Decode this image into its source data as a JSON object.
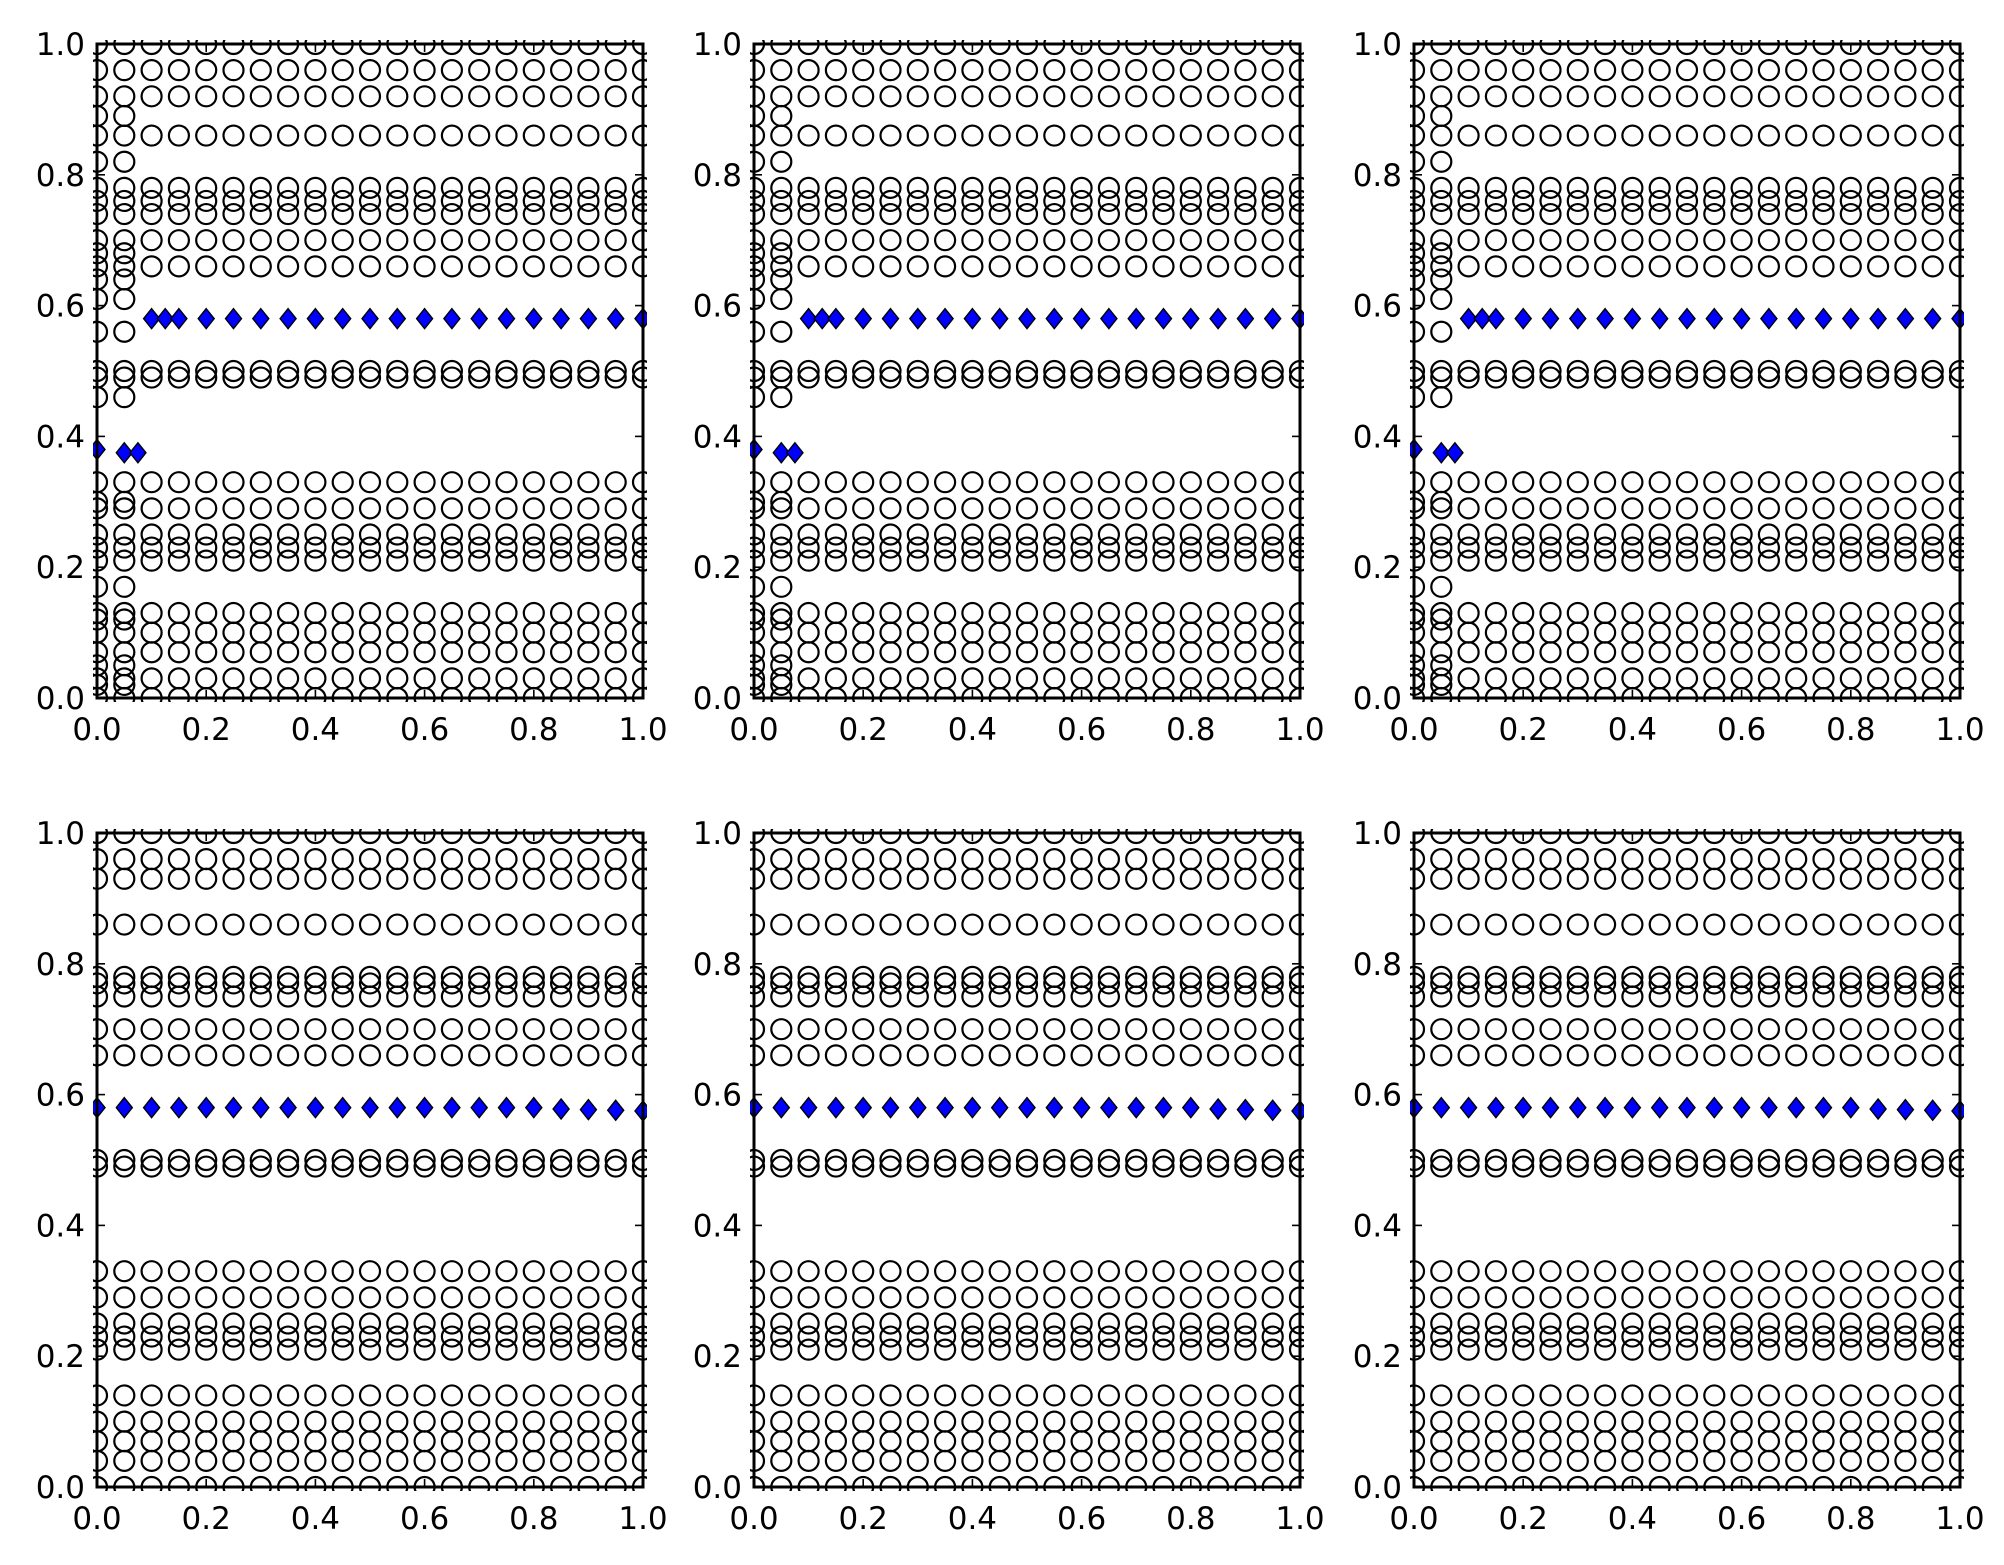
{
  "figure": {
    "layout": "2x3 grid of scatter plots",
    "background_color": "#ffffff"
  },
  "chart_data": [
    {
      "panel": "top-left",
      "type": "scatter",
      "title": "",
      "xlabel": "",
      "ylabel": "",
      "xlim": [
        0,
        1
      ],
      "ylim": [
        0,
        1
      ],
      "grid": false,
      "legend": "none",
      "xticks": [
        "0.0",
        "0.2",
        "0.4",
        "0.6",
        "0.8",
        "1.0"
      ],
      "yticks": [
        "0.0",
        "0.2",
        "0.4",
        "0.6",
        "0.8",
        "1.0"
      ],
      "series": [
        {
          "marker": "circle",
          "color": "none",
          "edge_color": "#000000",
          "x_columns": [
            0.0,
            0.05,
            0.1,
            0.15,
            0.2,
            0.25,
            0.3,
            0.35,
            0.4,
            0.45,
            0.5,
            0.55,
            0.6,
            0.65,
            0.7,
            0.75,
            0.8,
            0.85,
            0.9,
            0.95,
            1.0
          ],
          "y_rows": [
            0.0,
            0.03,
            0.07,
            0.1,
            0.13,
            0.21,
            0.23,
            0.25,
            0.29,
            0.33,
            0.49,
            0.5,
            0.66,
            0.7,
            0.74,
            0.76,
            0.78,
            0.86,
            0.92,
            0.96,
            1.0
          ],
          "y_rows_left_margin": [
            0.02,
            0.05,
            0.12,
            0.17,
            0.3,
            0.46,
            0.56,
            0.61,
            0.64,
            0.68,
            0.82,
            0.89
          ]
        },
        {
          "marker": "diamond",
          "color": "#0000ff",
          "edge_color": "#000000",
          "points": [
            [
              0.0,
              0.38
            ],
            [
              0.05,
              0.375
            ],
            [
              0.075,
              0.375
            ],
            [
              0.1,
              0.58
            ],
            [
              0.125,
              0.58
            ],
            [
              0.15,
              0.58
            ],
            [
              0.2,
              0.58
            ],
            [
              0.25,
              0.58
            ],
            [
              0.3,
              0.58
            ],
            [
              0.35,
              0.58
            ],
            [
              0.4,
              0.58
            ],
            [
              0.45,
              0.58
            ],
            [
              0.5,
              0.58
            ],
            [
              0.55,
              0.58
            ],
            [
              0.6,
              0.58
            ],
            [
              0.65,
              0.58
            ],
            [
              0.7,
              0.58
            ],
            [
              0.75,
              0.58
            ],
            [
              0.8,
              0.58
            ],
            [
              0.85,
              0.58
            ],
            [
              0.9,
              0.58
            ],
            [
              0.95,
              0.58
            ],
            [
              1.0,
              0.58
            ]
          ]
        }
      ]
    },
    {
      "panel": "top-middle",
      "type": "scatter",
      "title": "",
      "xlabel": "",
      "ylabel": "",
      "xlim": [
        0,
        1
      ],
      "ylim": [
        0,
        1
      ],
      "grid": false,
      "legend": "none",
      "xticks": [
        "0.0",
        "0.2",
        "0.4",
        "0.6",
        "0.8",
        "1.0"
      ],
      "yticks": [
        "0.0",
        "0.2",
        "0.4",
        "0.6",
        "0.8",
        "1.0"
      ],
      "series": [
        {
          "marker": "circle",
          "color": "none",
          "edge_color": "#000000",
          "x_columns": [
            0.0,
            0.05,
            0.1,
            0.15,
            0.2,
            0.25,
            0.3,
            0.35,
            0.4,
            0.45,
            0.5,
            0.55,
            0.6,
            0.65,
            0.7,
            0.75,
            0.8,
            0.85,
            0.9,
            0.95,
            1.0
          ],
          "y_rows": [
            0.0,
            0.03,
            0.07,
            0.1,
            0.13,
            0.21,
            0.23,
            0.25,
            0.29,
            0.33,
            0.49,
            0.5,
            0.66,
            0.7,
            0.74,
            0.76,
            0.78,
            0.86,
            0.92,
            0.96,
            1.0
          ],
          "y_rows_left_margin": [
            0.02,
            0.05,
            0.12,
            0.17,
            0.3,
            0.46,
            0.56,
            0.61,
            0.64,
            0.68,
            0.82,
            0.89
          ]
        },
        {
          "marker": "diamond",
          "color": "#0000ff",
          "edge_color": "#000000",
          "points": [
            [
              0.0,
              0.38
            ],
            [
              0.05,
              0.375
            ],
            [
              0.075,
              0.375
            ],
            [
              0.1,
              0.58
            ],
            [
              0.125,
              0.58
            ],
            [
              0.15,
              0.58
            ],
            [
              0.2,
              0.58
            ],
            [
              0.25,
              0.58
            ],
            [
              0.3,
              0.58
            ],
            [
              0.35,
              0.58
            ],
            [
              0.4,
              0.58
            ],
            [
              0.45,
              0.58
            ],
            [
              0.5,
              0.58
            ],
            [
              0.55,
              0.58
            ],
            [
              0.6,
              0.58
            ],
            [
              0.65,
              0.58
            ],
            [
              0.7,
              0.58
            ],
            [
              0.75,
              0.58
            ],
            [
              0.8,
              0.58
            ],
            [
              0.85,
              0.58
            ],
            [
              0.9,
              0.58
            ],
            [
              0.95,
              0.58
            ],
            [
              1.0,
              0.58
            ]
          ]
        }
      ]
    },
    {
      "panel": "top-right",
      "type": "scatter",
      "title": "",
      "xlabel": "",
      "ylabel": "",
      "xlim": [
        0,
        1
      ],
      "ylim": [
        0,
        1
      ],
      "grid": false,
      "legend": "none",
      "xticks": [
        "0.0",
        "0.2",
        "0.4",
        "0.6",
        "0.8",
        "1.0"
      ],
      "yticks": [
        "0.0",
        "0.2",
        "0.4",
        "0.6",
        "0.8",
        "1.0"
      ],
      "series": [
        {
          "marker": "circle",
          "color": "none",
          "edge_color": "#000000",
          "x_columns": [
            0.0,
            0.05,
            0.1,
            0.15,
            0.2,
            0.25,
            0.3,
            0.35,
            0.4,
            0.45,
            0.5,
            0.55,
            0.6,
            0.65,
            0.7,
            0.75,
            0.8,
            0.85,
            0.9,
            0.95,
            1.0
          ],
          "y_rows": [
            0.0,
            0.03,
            0.07,
            0.1,
            0.13,
            0.21,
            0.23,
            0.25,
            0.29,
            0.33,
            0.49,
            0.5,
            0.66,
            0.7,
            0.74,
            0.76,
            0.78,
            0.86,
            0.92,
            0.96,
            1.0
          ],
          "y_rows_left_margin": [
            0.02,
            0.05,
            0.12,
            0.17,
            0.3,
            0.46,
            0.56,
            0.61,
            0.64,
            0.68,
            0.82,
            0.89
          ]
        },
        {
          "marker": "diamond",
          "color": "#0000ff",
          "edge_color": "#000000",
          "points": [
            [
              0.0,
              0.38
            ],
            [
              0.05,
              0.375
            ],
            [
              0.075,
              0.375
            ],
            [
              0.1,
              0.58
            ],
            [
              0.125,
              0.58
            ],
            [
              0.15,
              0.58
            ],
            [
              0.2,
              0.58
            ],
            [
              0.25,
              0.58
            ],
            [
              0.3,
              0.58
            ],
            [
              0.35,
              0.58
            ],
            [
              0.4,
              0.58
            ],
            [
              0.45,
              0.58
            ],
            [
              0.5,
              0.58
            ],
            [
              0.55,
              0.58
            ],
            [
              0.6,
              0.58
            ],
            [
              0.65,
              0.58
            ],
            [
              0.7,
              0.58
            ],
            [
              0.75,
              0.58
            ],
            [
              0.8,
              0.58
            ],
            [
              0.85,
              0.58
            ],
            [
              0.9,
              0.58
            ],
            [
              0.95,
              0.58
            ],
            [
              1.0,
              0.58
            ]
          ]
        }
      ]
    },
    {
      "panel": "bottom-left",
      "type": "scatter",
      "title": "",
      "xlabel": "",
      "ylabel": "",
      "xlim": [
        0,
        1
      ],
      "ylim": [
        0,
        1
      ],
      "grid": false,
      "legend": "none",
      "xticks": [
        "0.0",
        "0.2",
        "0.4",
        "0.6",
        "0.8",
        "1.0"
      ],
      "yticks": [
        "0.0",
        "0.2",
        "0.4",
        "0.6",
        "0.8",
        "1.0"
      ],
      "series": [
        {
          "marker": "circle",
          "color": "none",
          "edge_color": "#000000",
          "x_columns": [
            0.0,
            0.05,
            0.1,
            0.15,
            0.2,
            0.25,
            0.3,
            0.35,
            0.4,
            0.45,
            0.5,
            0.55,
            0.6,
            0.65,
            0.7,
            0.75,
            0.8,
            0.85,
            0.9,
            0.95,
            1.0
          ],
          "y_rows": [
            0.0,
            0.04,
            0.07,
            0.1,
            0.14,
            0.21,
            0.23,
            0.25,
            0.29,
            0.33,
            0.49,
            0.5,
            0.66,
            0.7,
            0.75,
            0.77,
            0.78,
            0.86,
            0.93,
            0.96,
            1.0
          ],
          "y_rows_left_margin": []
        },
        {
          "marker": "diamond",
          "color": "#0000ff",
          "edge_color": "#000000",
          "points": [
            [
              0.0,
              0.58
            ],
            [
              0.05,
              0.58
            ],
            [
              0.1,
              0.58
            ],
            [
              0.15,
              0.58
            ],
            [
              0.2,
              0.58
            ],
            [
              0.25,
              0.58
            ],
            [
              0.3,
              0.58
            ],
            [
              0.35,
              0.58
            ],
            [
              0.4,
              0.58
            ],
            [
              0.45,
              0.58
            ],
            [
              0.5,
              0.58
            ],
            [
              0.55,
              0.58
            ],
            [
              0.6,
              0.58
            ],
            [
              0.65,
              0.58
            ],
            [
              0.7,
              0.58
            ],
            [
              0.75,
              0.58
            ],
            [
              0.8,
              0.58
            ],
            [
              0.85,
              0.578
            ],
            [
              0.9,
              0.577
            ],
            [
              0.95,
              0.576
            ],
            [
              1.0,
              0.575
            ]
          ]
        }
      ]
    },
    {
      "panel": "bottom-middle",
      "type": "scatter",
      "title": "",
      "xlabel": "",
      "ylabel": "",
      "xlim": [
        0,
        1
      ],
      "ylim": [
        0,
        1
      ],
      "grid": false,
      "legend": "none",
      "xticks": [
        "0.0",
        "0.2",
        "0.4",
        "0.6",
        "0.8",
        "1.0"
      ],
      "yticks": [
        "0.0",
        "0.2",
        "0.4",
        "0.6",
        "0.8",
        "1.0"
      ],
      "series": [
        {
          "marker": "circle",
          "color": "none",
          "edge_color": "#000000",
          "x_columns": [
            0.0,
            0.05,
            0.1,
            0.15,
            0.2,
            0.25,
            0.3,
            0.35,
            0.4,
            0.45,
            0.5,
            0.55,
            0.6,
            0.65,
            0.7,
            0.75,
            0.8,
            0.85,
            0.9,
            0.95,
            1.0
          ],
          "y_rows": [
            0.0,
            0.04,
            0.07,
            0.1,
            0.14,
            0.21,
            0.23,
            0.25,
            0.29,
            0.33,
            0.49,
            0.5,
            0.66,
            0.7,
            0.75,
            0.77,
            0.78,
            0.86,
            0.93,
            0.96,
            1.0
          ],
          "y_rows_left_margin": []
        },
        {
          "marker": "diamond",
          "color": "#0000ff",
          "edge_color": "#000000",
          "points": [
            [
              0.0,
              0.58
            ],
            [
              0.05,
              0.58
            ],
            [
              0.1,
              0.58
            ],
            [
              0.15,
              0.58
            ],
            [
              0.2,
              0.58
            ],
            [
              0.25,
              0.58
            ],
            [
              0.3,
              0.58
            ],
            [
              0.35,
              0.58
            ],
            [
              0.4,
              0.58
            ],
            [
              0.45,
              0.58
            ],
            [
              0.5,
              0.58
            ],
            [
              0.55,
              0.58
            ],
            [
              0.6,
              0.58
            ],
            [
              0.65,
              0.58
            ],
            [
              0.7,
              0.58
            ],
            [
              0.75,
              0.58
            ],
            [
              0.8,
              0.58
            ],
            [
              0.85,
              0.578
            ],
            [
              0.9,
              0.577
            ],
            [
              0.95,
              0.576
            ],
            [
              1.0,
              0.575
            ]
          ]
        }
      ]
    },
    {
      "panel": "bottom-right",
      "type": "scatter",
      "title": "",
      "xlabel": "",
      "ylabel": "",
      "xlim": [
        0,
        1
      ],
      "ylim": [
        0,
        1
      ],
      "grid": false,
      "legend": "none",
      "xticks": [
        "0.0",
        "0.2",
        "0.4",
        "0.6",
        "0.8",
        "1.0"
      ],
      "yticks": [
        "0.0",
        "0.2",
        "0.4",
        "0.6",
        "0.8",
        "1.0"
      ],
      "series": [
        {
          "marker": "circle",
          "color": "none",
          "edge_color": "#000000",
          "x_columns": [
            0.0,
            0.05,
            0.1,
            0.15,
            0.2,
            0.25,
            0.3,
            0.35,
            0.4,
            0.45,
            0.5,
            0.55,
            0.6,
            0.65,
            0.7,
            0.75,
            0.8,
            0.85,
            0.9,
            0.95,
            1.0
          ],
          "y_rows": [
            0.0,
            0.04,
            0.07,
            0.1,
            0.14,
            0.21,
            0.23,
            0.25,
            0.29,
            0.33,
            0.49,
            0.5,
            0.66,
            0.7,
            0.75,
            0.77,
            0.78,
            0.86,
            0.93,
            0.96,
            1.0
          ],
          "y_rows_left_margin": []
        },
        {
          "marker": "diamond",
          "color": "#0000ff",
          "edge_color": "#000000",
          "points": [
            [
              0.0,
              0.58
            ],
            [
              0.05,
              0.58
            ],
            [
              0.1,
              0.58
            ],
            [
              0.15,
              0.58
            ],
            [
              0.2,
              0.58
            ],
            [
              0.25,
              0.58
            ],
            [
              0.3,
              0.58
            ],
            [
              0.35,
              0.58
            ],
            [
              0.4,
              0.58
            ],
            [
              0.45,
              0.58
            ],
            [
              0.5,
              0.58
            ],
            [
              0.55,
              0.58
            ],
            [
              0.6,
              0.58
            ],
            [
              0.65,
              0.58
            ],
            [
              0.7,
              0.58
            ],
            [
              0.75,
              0.58
            ],
            [
              0.8,
              0.58
            ],
            [
              0.85,
              0.578
            ],
            [
              0.9,
              0.577
            ],
            [
              0.95,
              0.576
            ],
            [
              1.0,
              0.575
            ]
          ]
        }
      ]
    }
  ]
}
